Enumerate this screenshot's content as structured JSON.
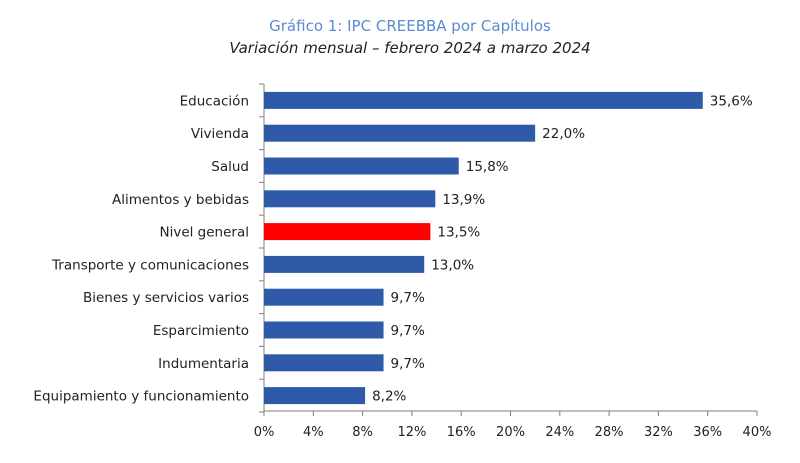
{
  "chart_data": {
    "type": "bar",
    "orientation": "horizontal",
    "title": "Gráfico 1: IPC CREEBBA por Capítulos",
    "subtitle": "Variación mensual – febrero 2024 a marzo 2024",
    "categories": [
      "Educación",
      "Vivienda",
      "Salud",
      "Alimentos y bebidas",
      "Nivel general",
      "Transporte y comunicaciones",
      "Bienes y servicios varios",
      "Esparcimiento",
      "Indumentaria",
      "Equipamiento y funcionamiento"
    ],
    "values": [
      35.6,
      22.0,
      15.8,
      13.9,
      13.5,
      13.0,
      9.7,
      9.7,
      9.7,
      8.2
    ],
    "data_labels": [
      "35,6%",
      "22,0%",
      "15,8%",
      "13,9%",
      "13,5%",
      "13,0%",
      "9,7%",
      "9,7%",
      "9,7%",
      "8,2%"
    ],
    "highlight_index": 4,
    "xlim": [
      0,
      40
    ],
    "xticks": [
      0,
      4,
      8,
      12,
      16,
      20,
      24,
      28,
      32,
      36,
      40
    ],
    "xtick_labels": [
      "0%",
      "4%",
      "8%",
      "12%",
      "16%",
      "20%",
      "24%",
      "28%",
      "32%",
      "36%",
      "40%"
    ],
    "xlabel": "",
    "ylabel": "",
    "grid": false,
    "colors": {
      "bar": "#2e5aa8",
      "highlight": "#ff0000",
      "title": "#5b8bd0",
      "axis": "#7f7f7f",
      "text": "#222222"
    }
  }
}
